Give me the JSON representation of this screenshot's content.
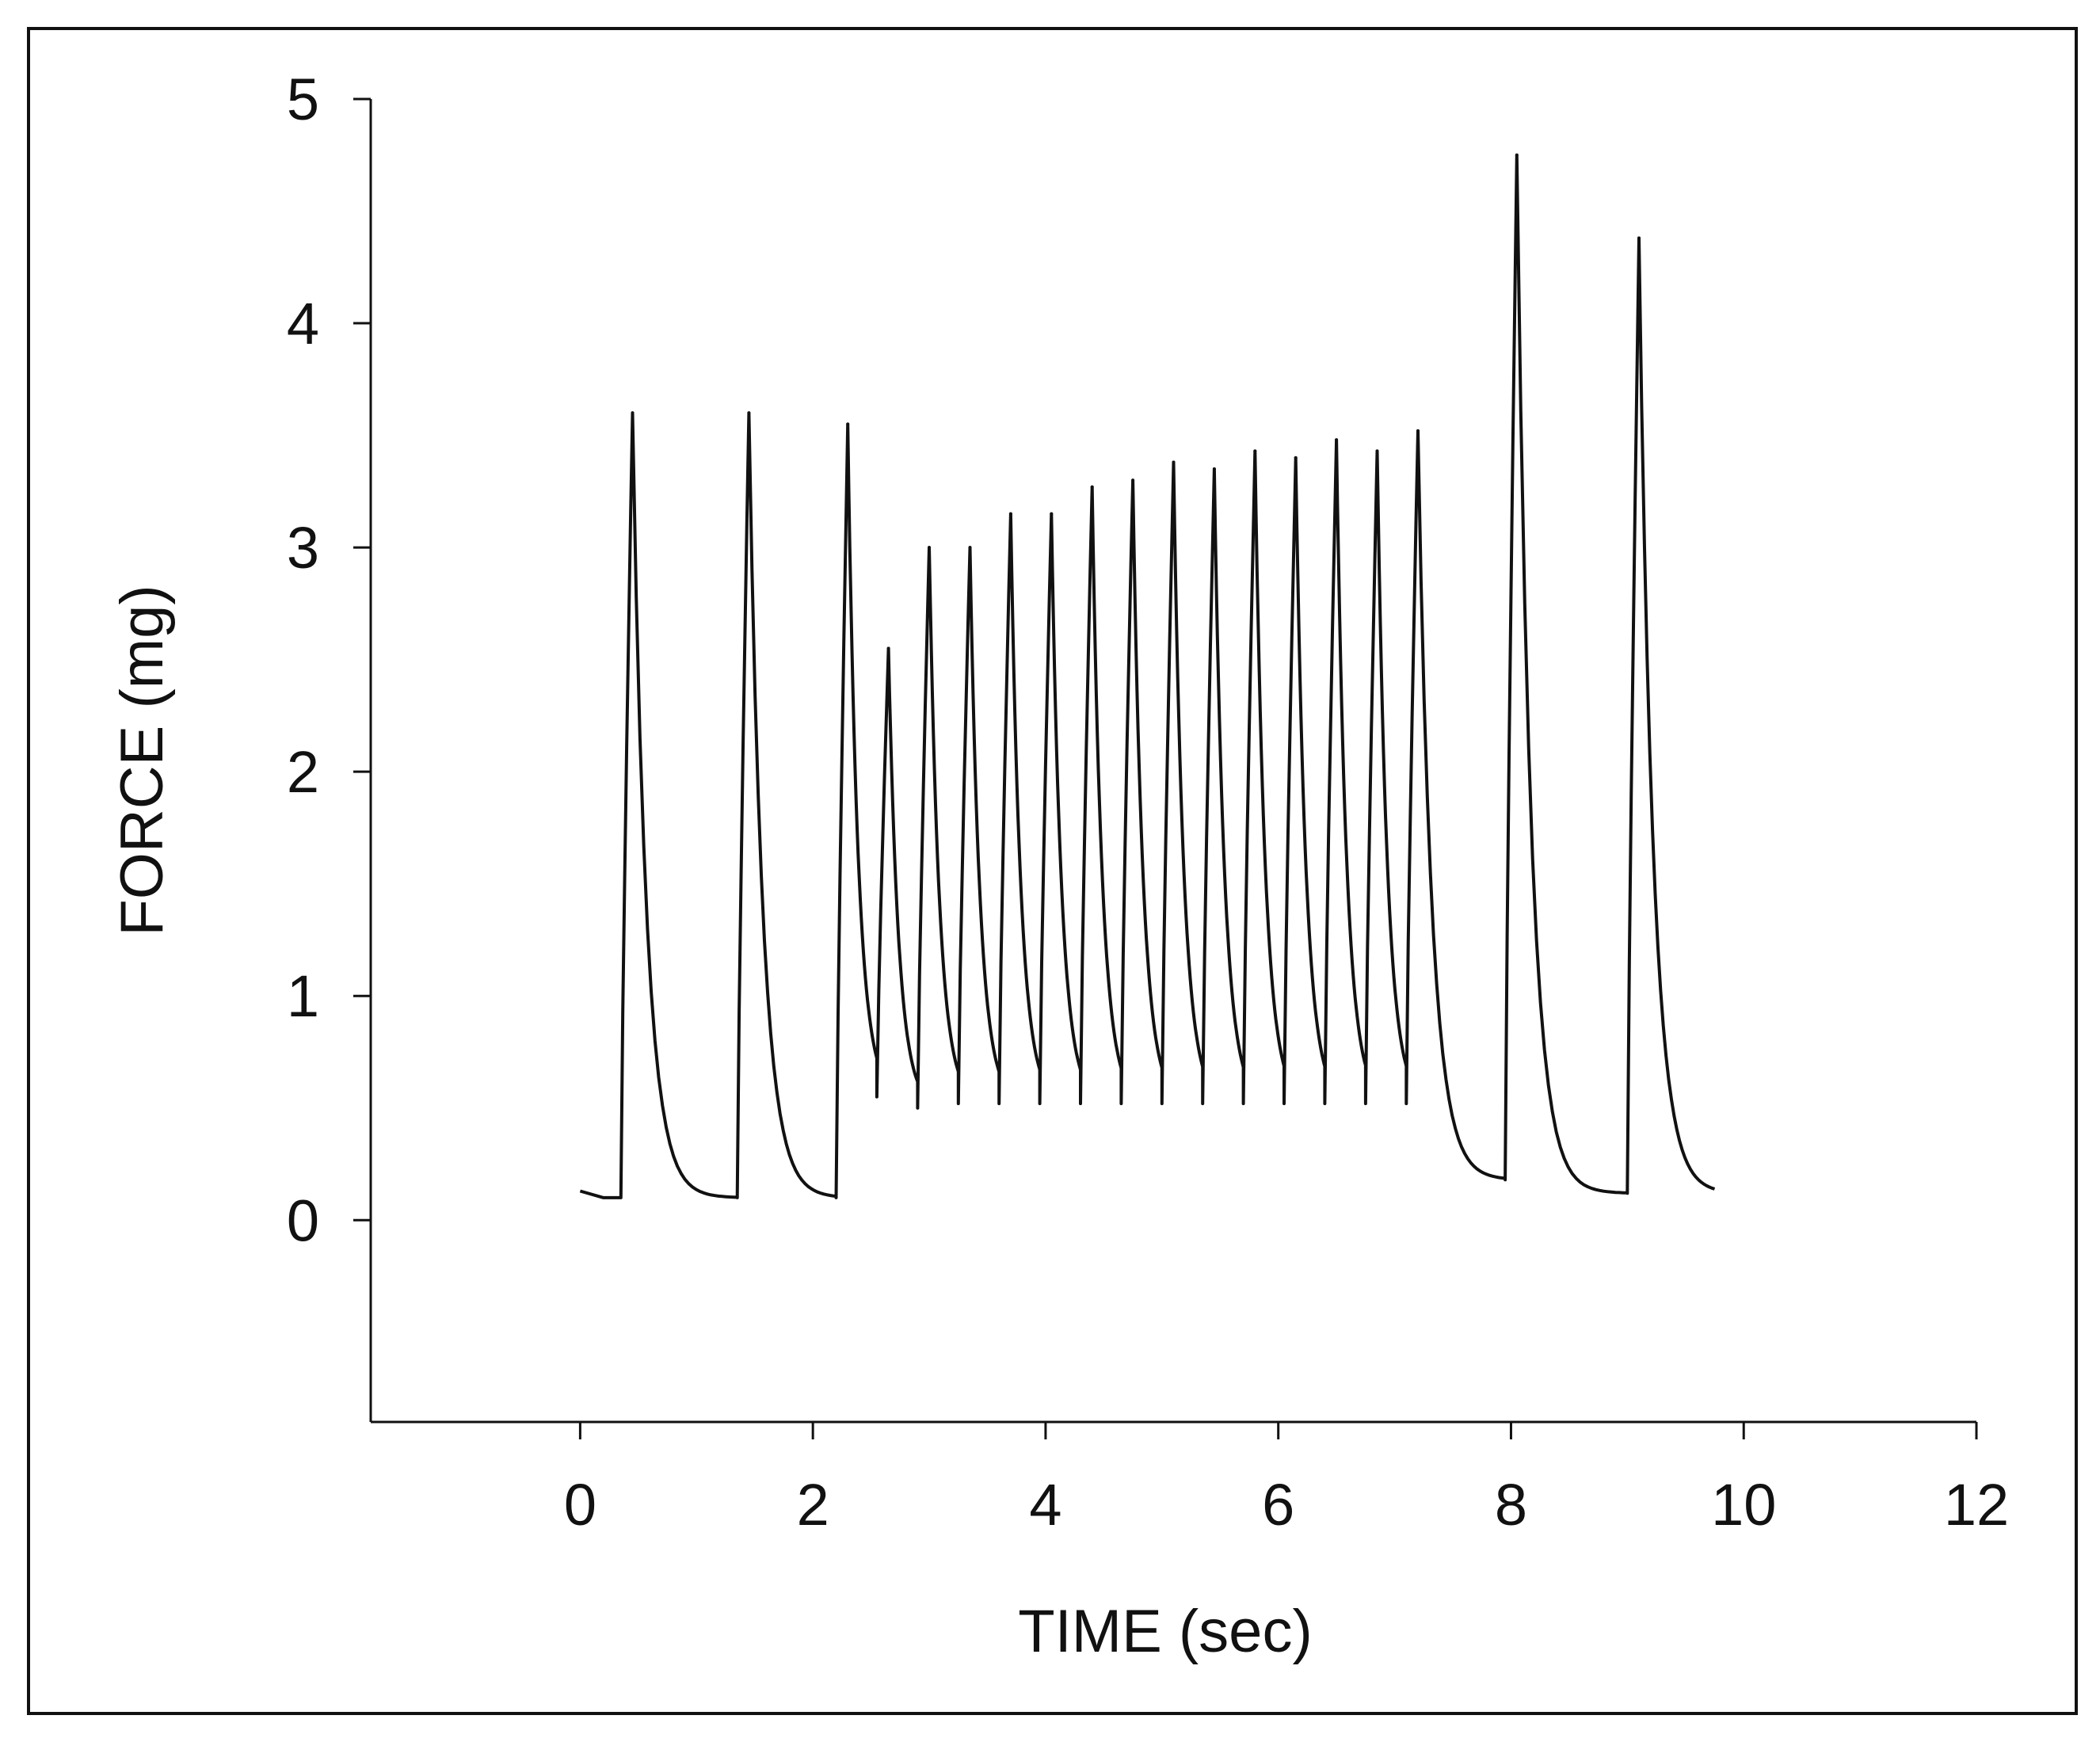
{
  "chart_data": {
    "type": "line",
    "title": "",
    "xlabel": "TIME (sec)",
    "ylabel": "FORCE (mg)",
    "xlim": [
      -1.8,
      12
    ],
    "ylim": [
      -0.9,
      5
    ],
    "xticks": [
      0,
      2,
      4,
      6,
      8,
      10,
      12
    ],
    "yticks": [
      0,
      1,
      2,
      3,
      4,
      5
    ],
    "grid": false,
    "legend": "none",
    "colors": {
      "trace": "#111111",
      "axes": "#111111"
    },
    "series": [
      {
        "type": "twitch-peaks",
        "baseline": 0.1,
        "points": [
          {
            "onset": 0.35,
            "peak_time": 0.45,
            "peak": 3.6,
            "end": 1.35,
            "min": 0.1
          },
          {
            "onset": 1.35,
            "peak_time": 1.45,
            "peak": 3.6,
            "end": 2.2,
            "min": 0.1
          },
          {
            "onset": 2.2,
            "peak_time": 2.3,
            "peak": 3.55,
            "end": 2.55,
            "min": 0.55
          },
          {
            "onset": 2.55,
            "peak_time": 2.65,
            "peak": 2.55,
            "end": 2.9,
            "min": 0.5
          },
          {
            "onset": 2.9,
            "peak_time": 3.0,
            "peak": 3.0,
            "end": 3.25,
            "min": 0.52
          },
          {
            "onset": 3.25,
            "peak_time": 3.35,
            "peak": 3.0,
            "end": 3.6,
            "min": 0.52
          },
          {
            "onset": 3.6,
            "peak_time": 3.7,
            "peak": 3.15,
            "end": 3.95,
            "min": 0.52
          },
          {
            "onset": 3.95,
            "peak_time": 4.05,
            "peak": 3.15,
            "end": 4.3,
            "min": 0.52
          },
          {
            "onset": 4.3,
            "peak_time": 4.4,
            "peak": 3.27,
            "end": 4.65,
            "min": 0.52
          },
          {
            "onset": 4.65,
            "peak_time": 4.75,
            "peak": 3.3,
            "end": 5.0,
            "min": 0.52
          },
          {
            "onset": 5.0,
            "peak_time": 5.1,
            "peak": 3.38,
            "end": 5.35,
            "min": 0.52
          },
          {
            "onset": 5.35,
            "peak_time": 5.45,
            "peak": 3.35,
            "end": 5.7,
            "min": 0.52
          },
          {
            "onset": 5.7,
            "peak_time": 5.8,
            "peak": 3.43,
            "end": 6.05,
            "min": 0.52
          },
          {
            "onset": 6.05,
            "peak_time": 6.15,
            "peak": 3.4,
            "end": 6.4,
            "min": 0.52
          },
          {
            "onset": 6.4,
            "peak_time": 6.5,
            "peak": 3.48,
            "end": 6.75,
            "min": 0.52
          },
          {
            "onset": 6.75,
            "peak_time": 6.85,
            "peak": 3.43,
            "end": 7.1,
            "min": 0.52
          },
          {
            "onset": 7.1,
            "peak_time": 7.2,
            "peak": 3.52,
            "end": 7.95,
            "min": 0.18
          },
          {
            "onset": 7.95,
            "peak_time": 8.05,
            "peak": 4.75,
            "end": 9.0,
            "min": 0.12
          },
          {
            "onset": 9.0,
            "peak_time": 9.1,
            "peak": 4.38,
            "end": 9.75,
            "min": 0.12
          }
        ]
      }
    ]
  }
}
